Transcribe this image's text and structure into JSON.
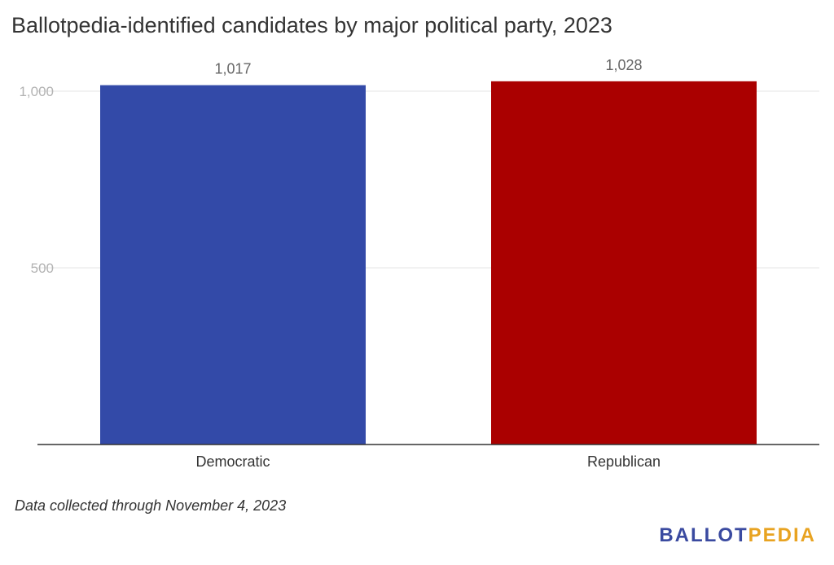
{
  "chart_data": {
    "type": "bar",
    "title": "Ballotpedia-identified candidates by major political party, 2023",
    "categories": [
      "Democratic",
      "Republican"
    ],
    "values": [
      1017,
      1028
    ],
    "data_labels": [
      "1,017",
      "1,028"
    ],
    "colors": [
      "#334aa8",
      "#aa0000"
    ],
    "yticks": [
      500,
      1000
    ],
    "ytick_labels": [
      "500",
      "1,000"
    ],
    "ylim": [
      0,
      1100
    ],
    "xlabel": "",
    "ylabel": "",
    "grid": true,
    "legend": "none"
  },
  "footnote": "Data collected through November 4, 2023",
  "logo": {
    "part1": "BALLOT",
    "part2": "PEDIA"
  }
}
